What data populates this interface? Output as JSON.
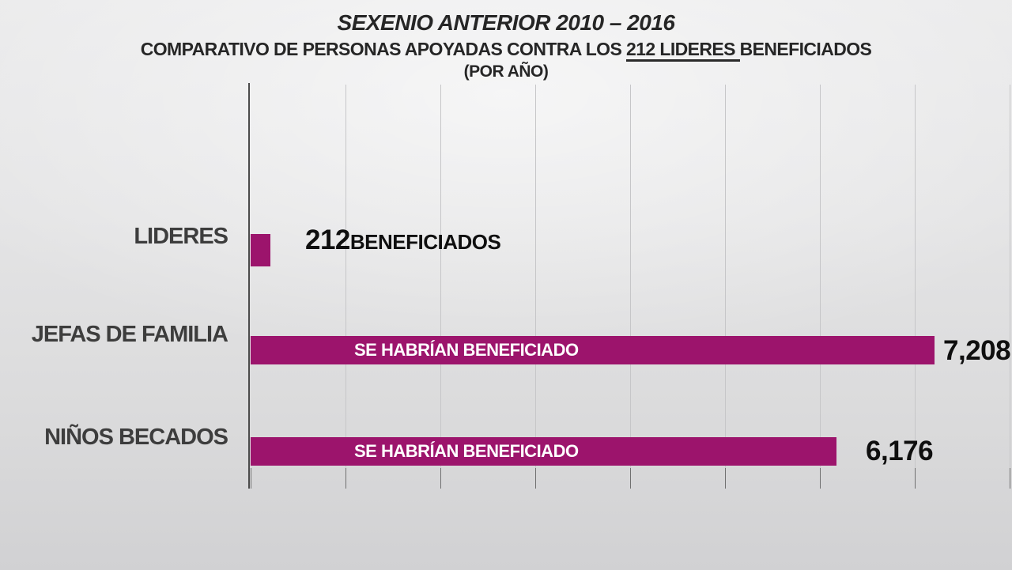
{
  "header": {
    "title": "SEXENIO ANTERIOR 2010 – 2016",
    "subtitle_pre": "COMPARATIVO DE PERSONAS APOYADAS CONTRA LOS ",
    "subtitle_underlined": "212 LIDERES ",
    "subtitle_post": "BENEFICIADOS",
    "per_year": "(POR AÑO)"
  },
  "chart_data": {
    "type": "bar",
    "orientation": "horizontal",
    "title": "SEXENIO ANTERIOR 2010 – 2016",
    "subtitle": "COMPARATIVO DE PERSONAS APOYADAS CONTRA LOS 212 LIDERES BENEFICIADOS (POR AÑO)",
    "categories": [
      "LIDERES",
      "JEFAS DE FAMILIA",
      "NIÑOS BECADOS"
    ],
    "values": [
      212,
      7208,
      6176
    ],
    "xlim": [
      0,
      8000
    ],
    "gridline_step": 1000,
    "grid": true,
    "tick_labels_visible": false,
    "rows": [
      {
        "category": "LIDERES",
        "value": 212,
        "value_label": "212",
        "value_suffix": "BENEFICIADOS",
        "bar_label": ""
      },
      {
        "category": "JEFAS DE FAMILIA",
        "value": 7208,
        "value_label": "7,208",
        "value_suffix": "",
        "bar_label": "SE HABRÍAN BENEFICIADO"
      },
      {
        "category": "NIÑOS BECADOS",
        "value": 6176,
        "value_label": "6,176",
        "value_suffix": "",
        "bar_label": "SE HABRÍAN BENEFICIADO"
      }
    ],
    "colors": {
      "bar": "#9C146C",
      "bar_label_text": "#FFFFFF",
      "category_label": "#3D3D3D",
      "value_label": "#0F0F0F",
      "axis_line": "#4B4B4B",
      "gridline": "#C6C6C8",
      "tick": "#707070",
      "title_text": "#262626"
    }
  }
}
